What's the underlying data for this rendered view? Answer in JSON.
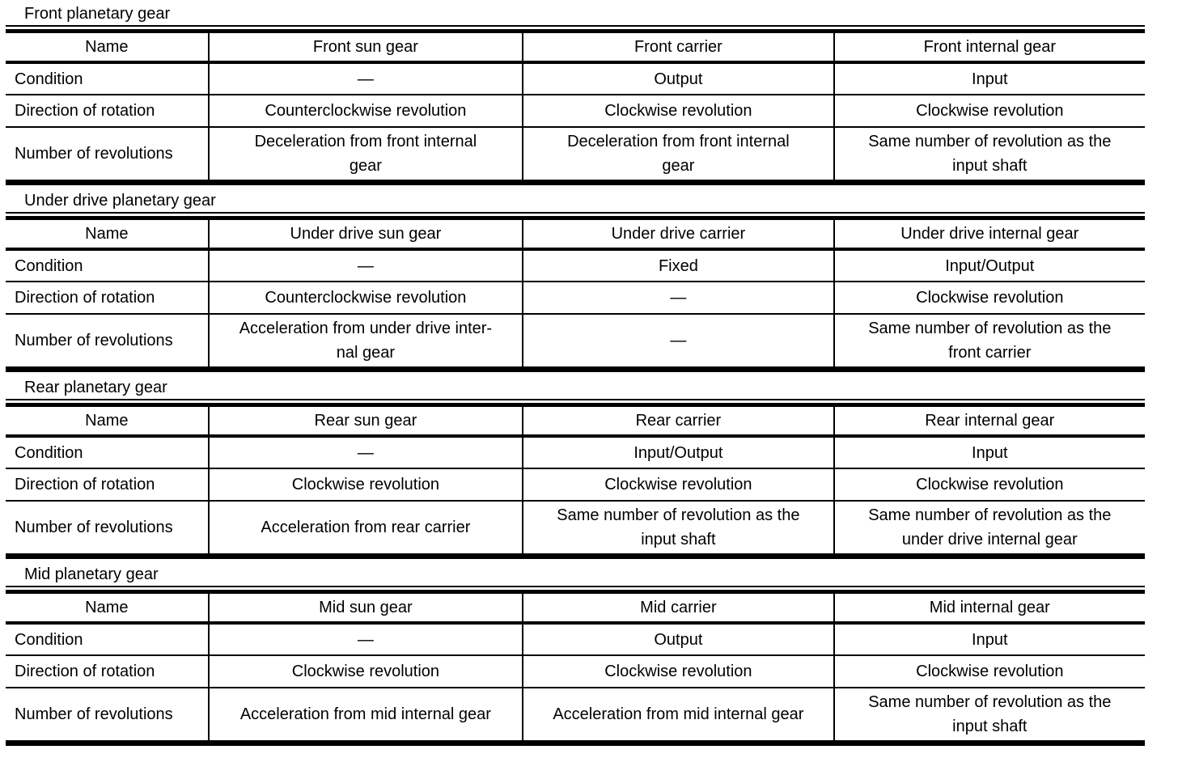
{
  "style": {
    "text_color": "#000000",
    "background_color": "#ffffff",
    "border_color": "#000000"
  },
  "tables": [
    {
      "title": "Front planetary gear",
      "columns": [
        "Name",
        "Front sun gear",
        "Front carrier",
        "Front internal gear"
      ],
      "rows": [
        {
          "label": "Condition",
          "values": [
            "—",
            "Output",
            "Input"
          ]
        },
        {
          "label": "Direction of rotation",
          "values": [
            "Counterclockwise revolution",
            "Clockwise revolution",
            "Clockwise revolution"
          ]
        },
        {
          "label": "Number of revolutions",
          "values": [
            "Deceleration from front internal\ngear",
            "Deceleration from front internal\ngear",
            "Same number of revolution as the\ninput shaft"
          ]
        }
      ]
    },
    {
      "title": "Under drive planetary gear",
      "columns": [
        "Name",
        "Under drive sun gear",
        "Under drive carrier",
        "Under drive internal gear"
      ],
      "rows": [
        {
          "label": "Condition",
          "values": [
            "—",
            "Fixed",
            "Input/Output"
          ]
        },
        {
          "label": "Direction of rotation",
          "values": [
            "Counterclockwise revolution",
            "—",
            "Clockwise revolution"
          ]
        },
        {
          "label": "Number of revolutions",
          "values": [
            "Acceleration from under drive inter-\nnal gear",
            "—",
            "Same number of revolution as the\nfront carrier"
          ]
        }
      ]
    },
    {
      "title": "Rear planetary gear",
      "columns": [
        "Name",
        "Rear sun gear",
        "Rear carrier",
        "Rear internal gear"
      ],
      "rows": [
        {
          "label": "Condition",
          "values": [
            "—",
            "Input/Output",
            "Input"
          ]
        },
        {
          "label": "Direction of rotation",
          "values": [
            "Clockwise revolution",
            "Clockwise revolution",
            "Clockwise revolution"
          ]
        },
        {
          "label": "Number of revolutions",
          "values": [
            "Acceleration from rear carrier",
            "Same number of revolution as the\ninput shaft",
            "Same number of revolution as the\nunder drive internal gear"
          ]
        }
      ]
    },
    {
      "title": "Mid planetary gear",
      "columns": [
        "Name",
        "Mid sun gear",
        "Mid carrier",
        "Mid internal gear"
      ],
      "rows": [
        {
          "label": "Condition",
          "values": [
            "—",
            "Output",
            "Input"
          ]
        },
        {
          "label": "Direction of rotation",
          "values": [
            "Clockwise revolution",
            "Clockwise revolution",
            "Clockwise revolution"
          ]
        },
        {
          "label": "Number of revolutions",
          "values": [
            "Acceleration from mid internal gear",
            "Acceleration from mid internal gear",
            "Same number of revolution as the\ninput shaft"
          ]
        }
      ]
    }
  ]
}
